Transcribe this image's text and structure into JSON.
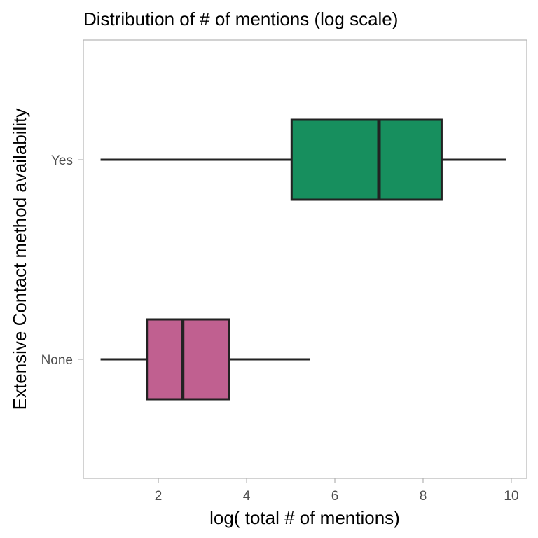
{
  "chart_data": {
    "type": "boxplot",
    "orientation": "horizontal",
    "title": "Distribution of # of mentions (log scale)",
    "xlabel": "log( total # of mentions)",
    "ylabel": "Extensive Contact method availability",
    "xlim": [
      0.3,
      10.35
    ],
    "x_ticks": [
      2,
      4,
      6,
      8,
      10
    ],
    "categories": [
      "None",
      "Yes"
    ],
    "grid": false,
    "legend": "none",
    "series": [
      {
        "category": "None",
        "min": 0.69,
        "q1": 1.74,
        "median": 2.55,
        "q3": 3.6,
        "max": 5.43,
        "color": "#c06090"
      },
      {
        "category": "Yes",
        "min": 0.69,
        "q1": 5.02,
        "median": 7.0,
        "q3": 8.42,
        "max": 9.88,
        "color": "#178f5e"
      }
    ]
  }
}
